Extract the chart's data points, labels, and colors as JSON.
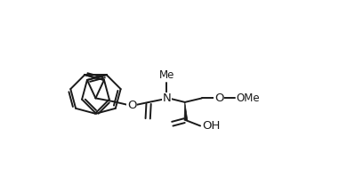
{
  "bg_color": "#ffffff",
  "line_color": "#1a1a1a",
  "lw": 1.4,
  "xlim": [
    0,
    10
  ],
  "ylim": [
    0,
    5.5
  ],
  "figsize": [
    3.99,
    2.08
  ],
  "dpi": 100
}
